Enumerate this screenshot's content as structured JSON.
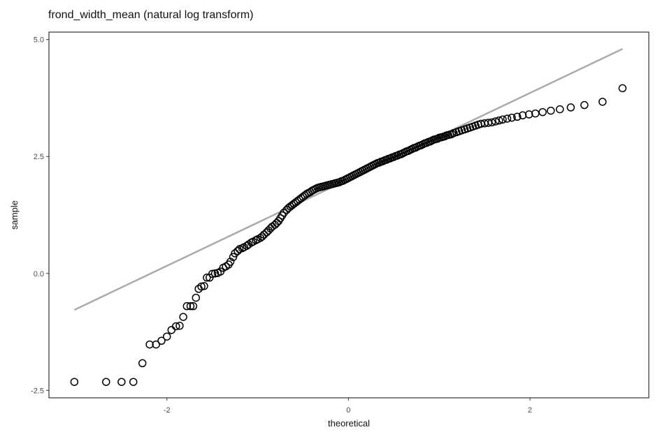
{
  "chart_data": {
    "type": "scatter",
    "title": "frond_width_mean (natural log transform)",
    "xlabel": "theoretical",
    "ylabel": "sample",
    "xlim": [
      -3.3,
      3.31
    ],
    "ylim": [
      -2.66,
      5.16
    ],
    "xticks": [
      -2,
      0,
      2
    ],
    "xtick_labels": [
      "-2",
      "0",
      "2"
    ],
    "yticks": [
      -2.5,
      0.0,
      2.5,
      5.0
    ],
    "ytick_labels": [
      "-2.5",
      "0.0",
      "2.5",
      "5.0"
    ],
    "grid": false,
    "legend": "none",
    "point_color": "#000000",
    "line_color": "#aaaaaa",
    "reference_line": {
      "x": [
        -3.02,
        3.02
      ],
      "y": [
        -0.78,
        4.8
      ]
    },
    "points": [
      [
        -3.02,
        -2.32
      ],
      [
        -2.67,
        -2.32
      ],
      [
        -2.5,
        -2.32
      ],
      [
        -2.37,
        -2.32
      ],
      [
        -2.27,
        -1.92
      ],
      [
        -2.19,
        -1.52
      ],
      [
        -2.12,
        -1.52
      ],
      [
        -2.06,
        -1.44
      ],
      [
        -2.0,
        -1.35
      ],
      [
        -1.95,
        -1.21
      ],
      [
        -1.9,
        -1.13
      ],
      [
        -1.86,
        -1.12
      ],
      [
        -1.82,
        -0.93
      ],
      [
        -1.78,
        -0.7
      ],
      [
        -1.74,
        -0.7
      ],
      [
        -1.71,
        -0.7
      ],
      [
        -1.68,
        -0.52
      ],
      [
        -1.65,
        -0.33
      ],
      [
        -1.62,
        -0.28
      ],
      [
        -1.59,
        -0.27
      ],
      [
        -1.56,
        -0.09
      ],
      [
        -1.53,
        -0.09
      ],
      [
        -1.5,
        -0.01
      ],
      [
        -1.47,
        0.0
      ],
      [
        -1.44,
        0.01
      ],
      [
        -1.41,
        0.04
      ],
      [
        -1.38,
        0.12
      ],
      [
        -1.35,
        0.15
      ],
      [
        -1.32,
        0.19
      ],
      [
        -1.3,
        0.25
      ],
      [
        -1.27,
        0.35
      ],
      [
        -1.25,
        0.43
      ],
      [
        -1.22,
        0.48
      ],
      [
        -1.2,
        0.52
      ],
      [
        -1.17,
        0.54
      ],
      [
        -1.15,
        0.56
      ],
      [
        -1.12,
        0.59
      ],
      [
        -1.1,
        0.62
      ],
      [
        -1.07,
        0.66
      ],
      [
        -1.05,
        0.68
      ],
      [
        -1.02,
        0.71
      ],
      [
        -1.0,
        0.73
      ],
      [
        -0.97,
        0.76
      ],
      [
        -0.95,
        0.79
      ],
      [
        -0.93,
        0.83
      ],
      [
        -0.9,
        0.88
      ],
      [
        -0.88,
        0.92
      ],
      [
        -0.86,
        0.96
      ],
      [
        -0.84,
        1.0
      ],
      [
        -0.81,
        1.04
      ],
      [
        -0.79,
        1.08
      ],
      [
        -0.77,
        1.12
      ],
      [
        -0.75,
        1.18
      ],
      [
        -0.73,
        1.24
      ],
      [
        -0.71,
        1.3
      ],
      [
        -0.68,
        1.36
      ],
      [
        -0.66,
        1.4
      ],
      [
        -0.64,
        1.43
      ],
      [
        -0.62,
        1.46
      ],
      [
        -0.6,
        1.49
      ],
      [
        -0.58,
        1.52
      ],
      [
        -0.56,
        1.55
      ],
      [
        -0.54,
        1.58
      ],
      [
        -0.52,
        1.61
      ],
      [
        -0.5,
        1.64
      ],
      [
        -0.48,
        1.67
      ],
      [
        -0.46,
        1.7
      ],
      [
        -0.44,
        1.72
      ],
      [
        -0.42,
        1.74
      ],
      [
        -0.4,
        1.77
      ],
      [
        -0.38,
        1.79
      ],
      [
        -0.36,
        1.81
      ],
      [
        -0.34,
        1.83
      ],
      [
        -0.32,
        1.84
      ],
      [
        -0.3,
        1.85
      ],
      [
        -0.28,
        1.86
      ],
      [
        -0.26,
        1.87
      ],
      [
        -0.24,
        1.88
      ],
      [
        -0.22,
        1.89
      ],
      [
        -0.2,
        1.9
      ],
      [
        -0.18,
        1.91
      ],
      [
        -0.16,
        1.92
      ],
      [
        -0.14,
        1.93
      ],
      [
        -0.12,
        1.94
      ],
      [
        -0.1,
        1.95
      ],
      [
        -0.08,
        1.97
      ],
      [
        -0.06,
        1.98
      ],
      [
        -0.04,
        2.0
      ],
      [
        -0.02,
        2.02
      ],
      [
        0.0,
        2.04
      ],
      [
        0.02,
        2.06
      ],
      [
        0.04,
        2.08
      ],
      [
        0.06,
        2.1
      ],
      [
        0.08,
        2.12
      ],
      [
        0.1,
        2.14
      ],
      [
        0.12,
        2.16
      ],
      [
        0.14,
        2.18
      ],
      [
        0.16,
        2.2
      ],
      [
        0.18,
        2.22
      ],
      [
        0.2,
        2.24
      ],
      [
        0.22,
        2.26
      ],
      [
        0.24,
        2.28
      ],
      [
        0.26,
        2.3
      ],
      [
        0.28,
        2.32
      ],
      [
        0.3,
        2.34
      ],
      [
        0.32,
        2.36
      ],
      [
        0.34,
        2.37
      ],
      [
        0.36,
        2.39
      ],
      [
        0.38,
        2.4
      ],
      [
        0.4,
        2.42
      ],
      [
        0.42,
        2.43
      ],
      [
        0.44,
        2.45
      ],
      [
        0.46,
        2.46
      ],
      [
        0.48,
        2.48
      ],
      [
        0.5,
        2.49
      ],
      [
        0.52,
        2.51
      ],
      [
        0.54,
        2.52
      ],
      [
        0.56,
        2.54
      ],
      [
        0.58,
        2.55
      ],
      [
        0.6,
        2.57
      ],
      [
        0.62,
        2.59
      ],
      [
        0.64,
        2.61
      ],
      [
        0.66,
        2.62
      ],
      [
        0.68,
        2.64
      ],
      [
        0.7,
        2.66
      ],
      [
        0.72,
        2.68
      ],
      [
        0.74,
        2.69
      ],
      [
        0.76,
        2.71
      ],
      [
        0.78,
        2.73
      ],
      [
        0.8,
        2.74
      ],
      [
        0.82,
        2.76
      ],
      [
        0.84,
        2.78
      ],
      [
        0.86,
        2.79
      ],
      [
        0.88,
        2.81
      ],
      [
        0.9,
        2.82
      ],
      [
        0.92,
        2.84
      ],
      [
        0.94,
        2.86
      ],
      [
        0.96,
        2.87
      ],
      [
        0.98,
        2.88
      ],
      [
        1.0,
        2.9
      ],
      [
        1.02,
        2.91
      ],
      [
        1.04,
        2.92
      ],
      [
        1.06,
        2.93
      ],
      [
        1.08,
        2.95
      ],
      [
        1.1,
        2.96
      ],
      [
        1.12,
        2.97
      ],
      [
        1.14,
        2.98
      ],
      [
        1.16,
        3.0
      ],
      [
        1.19,
        3.02
      ],
      [
        1.22,
        3.04
      ],
      [
        1.25,
        3.06
      ],
      [
        1.28,
        3.08
      ],
      [
        1.31,
        3.1
      ],
      [
        1.34,
        3.12
      ],
      [
        1.37,
        3.14
      ],
      [
        1.4,
        3.16
      ],
      [
        1.43,
        3.18
      ],
      [
        1.46,
        3.2
      ],
      [
        1.5,
        3.21
      ],
      [
        1.54,
        3.22
      ],
      [
        1.58,
        3.23
      ],
      [
        1.62,
        3.25
      ],
      [
        1.66,
        3.27
      ],
      [
        1.7,
        3.29
      ],
      [
        1.75,
        3.31
      ],
      [
        1.8,
        3.33
      ],
      [
        1.86,
        3.35
      ],
      [
        1.92,
        3.38
      ],
      [
        1.99,
        3.4
      ],
      [
        2.06,
        3.42
      ],
      [
        2.14,
        3.45
      ],
      [
        2.23,
        3.48
      ],
      [
        2.33,
        3.51
      ],
      [
        2.45,
        3.55
      ],
      [
        2.6,
        3.6
      ],
      [
        2.8,
        3.67
      ],
      [
        3.02,
        3.96
      ]
    ]
  }
}
